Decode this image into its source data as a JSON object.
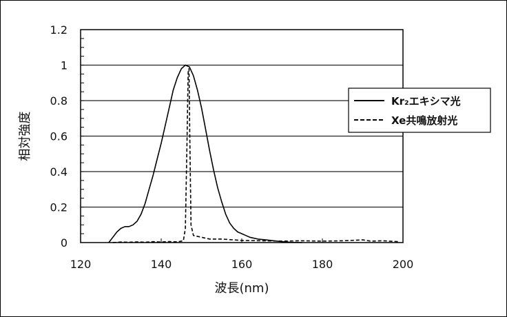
{
  "chart_data": {
    "type": "line",
    "title": "",
    "xlabel": "波長(nm)",
    "ylabel": "相対強度",
    "xlim": [
      120,
      200
    ],
    "ylim": [
      0,
      1.2
    ],
    "x_ticks": [
      "120",
      "140",
      "160",
      "180",
      "200"
    ],
    "y_ticks": [
      "0",
      "0.2",
      "0.4",
      "0.6",
      "0.8",
      "1",
      "1.2"
    ],
    "grid": "horizontal",
    "legend_position": "right",
    "series": [
      {
        "name": "Kr₂エキシマ光",
        "style": "solid",
        "color": "#000000",
        "points": [
          [
            127,
            0
          ],
          [
            128,
            0.03
          ],
          [
            129,
            0.06
          ],
          [
            130,
            0.08
          ],
          [
            131,
            0.09
          ],
          [
            132,
            0.09
          ],
          [
            133,
            0.1
          ],
          [
            134,
            0.12
          ],
          [
            135,
            0.16
          ],
          [
            136,
            0.22
          ],
          [
            137,
            0.3
          ],
          [
            138,
            0.38
          ],
          [
            139,
            0.47
          ],
          [
            140,
            0.56
          ],
          [
            141,
            0.66
          ],
          [
            142,
            0.76
          ],
          [
            143,
            0.86
          ],
          [
            144,
            0.93
          ],
          [
            145,
            0.98
          ],
          [
            146,
            1.0
          ],
          [
            147,
            0.99
          ],
          [
            148,
            0.94
          ],
          [
            149,
            0.86
          ],
          [
            150,
            0.76
          ],
          [
            151,
            0.64
          ],
          [
            152,
            0.52
          ],
          [
            153,
            0.41
          ],
          [
            154,
            0.31
          ],
          [
            155,
            0.23
          ],
          [
            156,
            0.16
          ],
          [
            157,
            0.11
          ],
          [
            158,
            0.08
          ],
          [
            159,
            0.06
          ],
          [
            160,
            0.05
          ],
          [
            162,
            0.03
          ],
          [
            164,
            0.02
          ],
          [
            166,
            0.015
          ],
          [
            168,
            0.01
          ],
          [
            170,
            0.005
          ],
          [
            172,
            0.002
          ],
          [
            175,
            0
          ]
        ]
      },
      {
        "name": "Xe共鳴放射光",
        "style": "dashed",
        "color": "#000000",
        "points": [
          [
            128,
            0
          ],
          [
            130,
            0.003
          ],
          [
            132,
            0.002
          ],
          [
            134,
            0.004
          ],
          [
            136,
            0.002
          ],
          [
            138,
            0.005
          ],
          [
            140,
            0.003
          ],
          [
            142,
            0.006
          ],
          [
            144,
            0.004
          ],
          [
            145.5,
            0.01
          ],
          [
            146.0,
            0.08
          ],
          [
            146.4,
            0.55
          ],
          [
            146.7,
            0.97
          ],
          [
            146.9,
            0.98
          ],
          [
            147.1,
            0.6
          ],
          [
            147.4,
            0.1
          ],
          [
            148,
            0.04
          ],
          [
            150,
            0.03
          ],
          [
            152,
            0.02
          ],
          [
            155,
            0.02
          ],
          [
            158,
            0.015
          ],
          [
            160,
            0.012
          ],
          [
            165,
            0.01
          ],
          [
            170,
            0.008
          ],
          [
            175,
            0.01
          ],
          [
            180,
            0.008
          ],
          [
            185,
            0.01
          ],
          [
            190,
            0.015
          ],
          [
            192,
            0.008
          ],
          [
            195,
            0.01
          ],
          [
            199,
            0.005
          ]
        ]
      }
    ]
  }
}
